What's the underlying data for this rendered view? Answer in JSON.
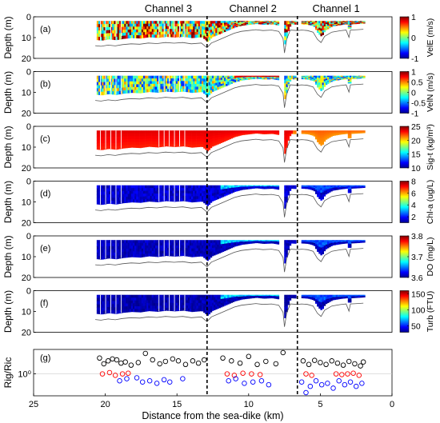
{
  "chart_data": {
    "type": "heatmap",
    "xlabel": "Distance from the sea-dike (km)",
    "xlim": [
      25,
      0
    ],
    "x_ticks": [
      25,
      20,
      15,
      10,
      5,
      0
    ],
    "channels": [
      {
        "label": "Channel 3"
      },
      {
        "label": "Channel 2"
      },
      {
        "label": "Channel 1"
      }
    ],
    "channel_boundaries_km": [
      12.9,
      6.6
    ],
    "panels": [
      {
        "tag": "(a)",
        "ylabel": "Depth (m)",
        "ylim": [
          0,
          20
        ],
        "y_ticks": [
          0,
          10,
          20
        ],
        "colorbar": {
          "label": "VelE (m/s)",
          "min": -1,
          "max": 1,
          "ticks": [
            1,
            0,
            -1
          ],
          "colormap": "jet"
        },
        "field_level": 0.7,
        "field_noise": 0.45
      },
      {
        "tag": "(b)",
        "ylabel": "Depth (m)",
        "ylim": [
          0,
          20
        ],
        "y_ticks": [
          0,
          10,
          20
        ],
        "colorbar": {
          "label": "VelN (m/s)",
          "min": -1,
          "max": 1,
          "ticks": [
            1,
            0.5,
            0,
            -0.5,
            -1
          ],
          "colormap": "jet"
        },
        "field_level": 0.45,
        "field_noise": 0.3
      },
      {
        "tag": "(c)",
        "ylabel": "Depth (m)",
        "ylim": [
          0,
          20
        ],
        "y_ticks": [
          0,
          10,
          20
        ],
        "colorbar": {
          "label": "Sig-t (kg/m³)",
          "min": 10,
          "max": 25,
          "ticks": [
            25,
            20,
            15,
            10
          ],
          "colormap": "jet"
        },
        "field_level": 0.9,
        "field_noise": 0.05
      },
      {
        "tag": "(d)",
        "ylabel": "Depth (m)",
        "ylim": [
          0,
          20
        ],
        "y_ticks": [
          0,
          10,
          20
        ],
        "colorbar": {
          "label": "Chl-a (ug/L)",
          "min": 1,
          "max": 8,
          "ticks": [
            8,
            6,
            4,
            2
          ],
          "colormap": "jet"
        },
        "field_level": 0.08,
        "field_noise": 0.05
      },
      {
        "tag": "(e)",
        "ylabel": "Depth (m)",
        "ylim": [
          0,
          20
        ],
        "y_ticks": [
          0,
          10,
          20
        ],
        "colorbar": {
          "label": "DO (mg/L)",
          "min": 3.6,
          "max": 3.8,
          "ticks": [
            3.8,
            3.7,
            3.6
          ],
          "colormap": "jet"
        },
        "field_level": 0.06,
        "field_noise": 0.04
      },
      {
        "tag": "(f)",
        "ylabel": "Depth (m)",
        "ylim": [
          0,
          20
        ],
        "y_ticks": [
          0,
          10,
          20
        ],
        "colorbar": {
          "label": "Turb (FTU)",
          "min": 30,
          "max": 160,
          "ticks": [
            150,
            100,
            50
          ],
          "colormap": "jet"
        },
        "field_level": 0.05,
        "field_noise": 0.04
      }
    ],
    "scatter_panel": {
      "tag": "(g)",
      "ylabel": "Rig/Ric",
      "y_scale": "log",
      "y_tick_label": "10⁰",
      "series": [
        {
          "color": "#000000",
          "x": [
            20.4,
            20.1,
            19.8,
            19.5,
            19.2,
            18.9,
            18.6,
            18.2,
            17.7,
            17.2,
            16.7,
            16.2,
            15.8,
            15.3,
            14.9,
            14.4,
            13.9,
            13.5,
            13.1,
            11.8,
            11.2,
            10.6,
            10.0,
            9.4,
            8.8,
            8.1,
            7.6,
            6.2,
            5.8,
            5.4,
            5.0,
            4.6,
            4.2,
            3.8,
            3.4,
            3.0,
            2.6,
            2.2,
            2.0
          ],
          "y": [
            3.2,
            2.1,
            2.6,
            3.0,
            2.8,
            2.2,
            2.4,
            1.9,
            2.3,
            4.5,
            2.8,
            2.1,
            2.5,
            3.0,
            2.6,
            2.0,
            2.6,
            2.2,
            2.8,
            3.2,
            2.6,
            2.2,
            3.6,
            2.0,
            2.5,
            2.1,
            5.0,
            2.6,
            2.0,
            2.7,
            2.3,
            2.0,
            2.6,
            2.2,
            1.9,
            2.5,
            2.1,
            1.8,
            2.4
          ]
        },
        {
          "color": "#ff0000",
          "x": [
            20.2,
            19.7,
            19.3,
            18.8,
            18.4,
            11.5,
            11.0,
            10.4,
            9.8,
            9.2,
            6.0,
            5.6,
            3.9,
            3.5,
            3.1,
            2.7,
            2.3
          ],
          "y": [
            1.0,
            1.1,
            0.9,
            1.0,
            1.05,
            1.0,
            0.9,
            1.05,
            1.0,
            0.95,
            1.0,
            0.9,
            1.0,
            0.95,
            1.0,
            1.05,
            0.9
          ]
        },
        {
          "color": "#0000ff",
          "x": [
            19.0,
            18.5,
            17.8,
            17.4,
            16.9,
            16.4,
            15.9,
            15.5,
            14.6,
            11.4,
            10.9,
            10.3,
            9.7,
            9.1,
            8.6,
            6.3,
            6.0,
            5.7,
            5.3,
            4.9,
            4.5,
            4.1,
            3.7,
            3.3,
            2.9,
            2.5,
            2.1
          ],
          "y": [
            0.6,
            0.7,
            0.75,
            0.55,
            0.6,
            0.5,
            0.65,
            0.55,
            0.7,
            0.6,
            0.7,
            0.5,
            0.55,
            0.6,
            0.45,
            0.55,
            0.25,
            0.4,
            0.6,
            0.45,
            0.5,
            0.35,
            0.6,
            0.45,
            0.55,
            0.4,
            0.5
          ]
        }
      ]
    }
  }
}
